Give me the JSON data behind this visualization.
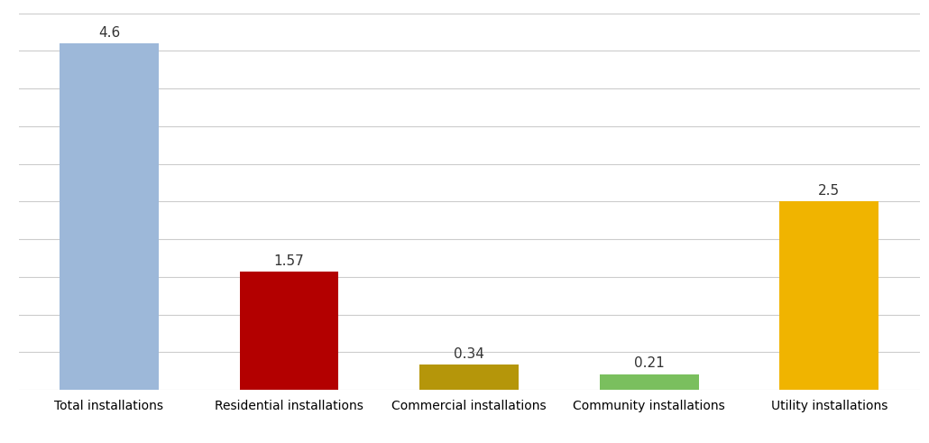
{
  "categories": [
    "Total installations",
    "Residential installations",
    "Commercial installations",
    "Community installations",
    "Utility installations"
  ],
  "values": [
    4.6,
    1.57,
    0.34,
    0.21,
    2.5
  ],
  "bar_colors": [
    "#9db8d9",
    "#b30000",
    "#b5960a",
    "#7abf5e",
    "#f0b400"
  ],
  "ylim": [
    0,
    5.0
  ],
  "yticks": [
    0,
    0.5,
    1.0,
    1.5,
    2.0,
    2.5,
    3.0,
    3.5,
    4.0,
    4.5,
    5.0
  ],
  "label_fontsize": 11,
  "tick_fontsize": 10,
  "background_color": "#ffffff",
  "grid_color": "#cccccc",
  "bar_width": 0.55
}
